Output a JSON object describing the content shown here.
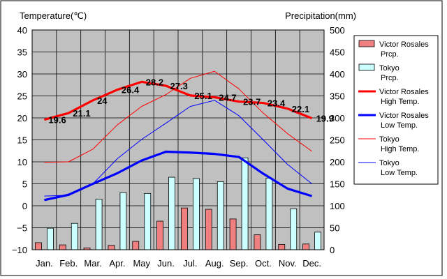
{
  "chart_data": {
    "type": "bar+line",
    "y_left_label": "Temperature(℃)",
    "y_right_label": "Precipitation(mm)",
    "y_left_lim": [
      -10,
      40
    ],
    "y_right_lim": [
      0,
      500
    ],
    "y_left_ticks": [
      "40",
      "35",
      "30",
      "25",
      "20",
      "15",
      "10",
      "5",
      "0",
      "−5",
      "−10"
    ],
    "y_right_ticks": [
      "500",
      "450",
      "400",
      "350",
      "300",
      "250",
      "200",
      "150",
      "100",
      "50",
      "0"
    ],
    "categories": [
      "Jan.",
      "Feb.",
      "Mar.",
      "Apr.",
      "May",
      "Jun.",
      "Jul.",
      "Aug.",
      "Sep.",
      "Oct.",
      "Nov.",
      "Dec."
    ],
    "grid": true,
    "legend_position": "right",
    "precipitation_series": [
      {
        "name": "Victor Rosales Prcp.",
        "color": "#f08080",
        "values": [
          16,
          11,
          4,
          10,
          19,
          65,
          95,
          92,
          70,
          34,
          12,
          13
        ]
      },
      {
        "name": "Tokyo Prcp.",
        "color": "#ccffff",
        "values": [
          49,
          60,
          115,
          130,
          128,
          165,
          162,
          155,
          209,
          163,
          93,
          40
        ]
      }
    ],
    "temperature_series": [
      {
        "name": "Victor Rosales High Temp.",
        "color": "#ff0000",
        "width": "thick",
        "values": [
          19.6,
          21.1,
          24,
          26.4,
          28.2,
          27.3,
          25.1,
          24.7,
          23.7,
          23.4,
          22.1,
          19.9
        ],
        "labels": [
          "19.6",
          "21.1",
          "24",
          "26.4",
          "28.2",
          "27.3",
          "25.1",
          "24.7",
          "23.7",
          "23.4",
          "22.1",
          "19.9"
        ]
      },
      {
        "name": "Victor Rosales Low Temp.",
        "color": "#0000ff",
        "width": "thick",
        "values": [
          1.3,
          2.5,
          5,
          7.4,
          10.3,
          12.3,
          12.1,
          11.8,
          11.1,
          7.3,
          3.9,
          2.2
        ]
      },
      {
        "name": "Tokyo High Temp.",
        "color": "#ff0000",
        "width": "thin",
        "values": [
          9.9,
          10,
          12.9,
          18.4,
          22.6,
          25.3,
          29,
          30.6,
          26.6,
          21.1,
          16.4,
          12.4
        ]
      },
      {
        "name": "Tokyo Low Temp.",
        "color": "#0000ff",
        "width": "thin",
        "values": [
          2.2,
          2.4,
          5,
          10.7,
          15.1,
          18.8,
          22.6,
          24,
          20.5,
          15,
          9.4,
          5
        ]
      }
    ],
    "legend": [
      {
        "line1": "Victor Rosales",
        "line2": "Prcp.",
        "kind": "box",
        "color": "#f08080"
      },
      {
        "line1": "Tokyo",
        "line2": "Prcp.",
        "kind": "box",
        "color": "#ccffff"
      },
      {
        "line1": "Victor Rosales",
        "line2": "High Temp.",
        "kind": "thick",
        "color": "#ff0000"
      },
      {
        "line1": "Victor Rosales",
        "line2": "Low Temp.",
        "kind": "thick",
        "color": "#0000ff"
      },
      {
        "line1": "Tokyo",
        "line2": "High Temp.",
        "kind": "thin",
        "color": "#ff0000"
      },
      {
        "line1": "Tokyo",
        "line2": "Low Temp.",
        "kind": "thin",
        "color": "#0000ff"
      }
    ]
  }
}
